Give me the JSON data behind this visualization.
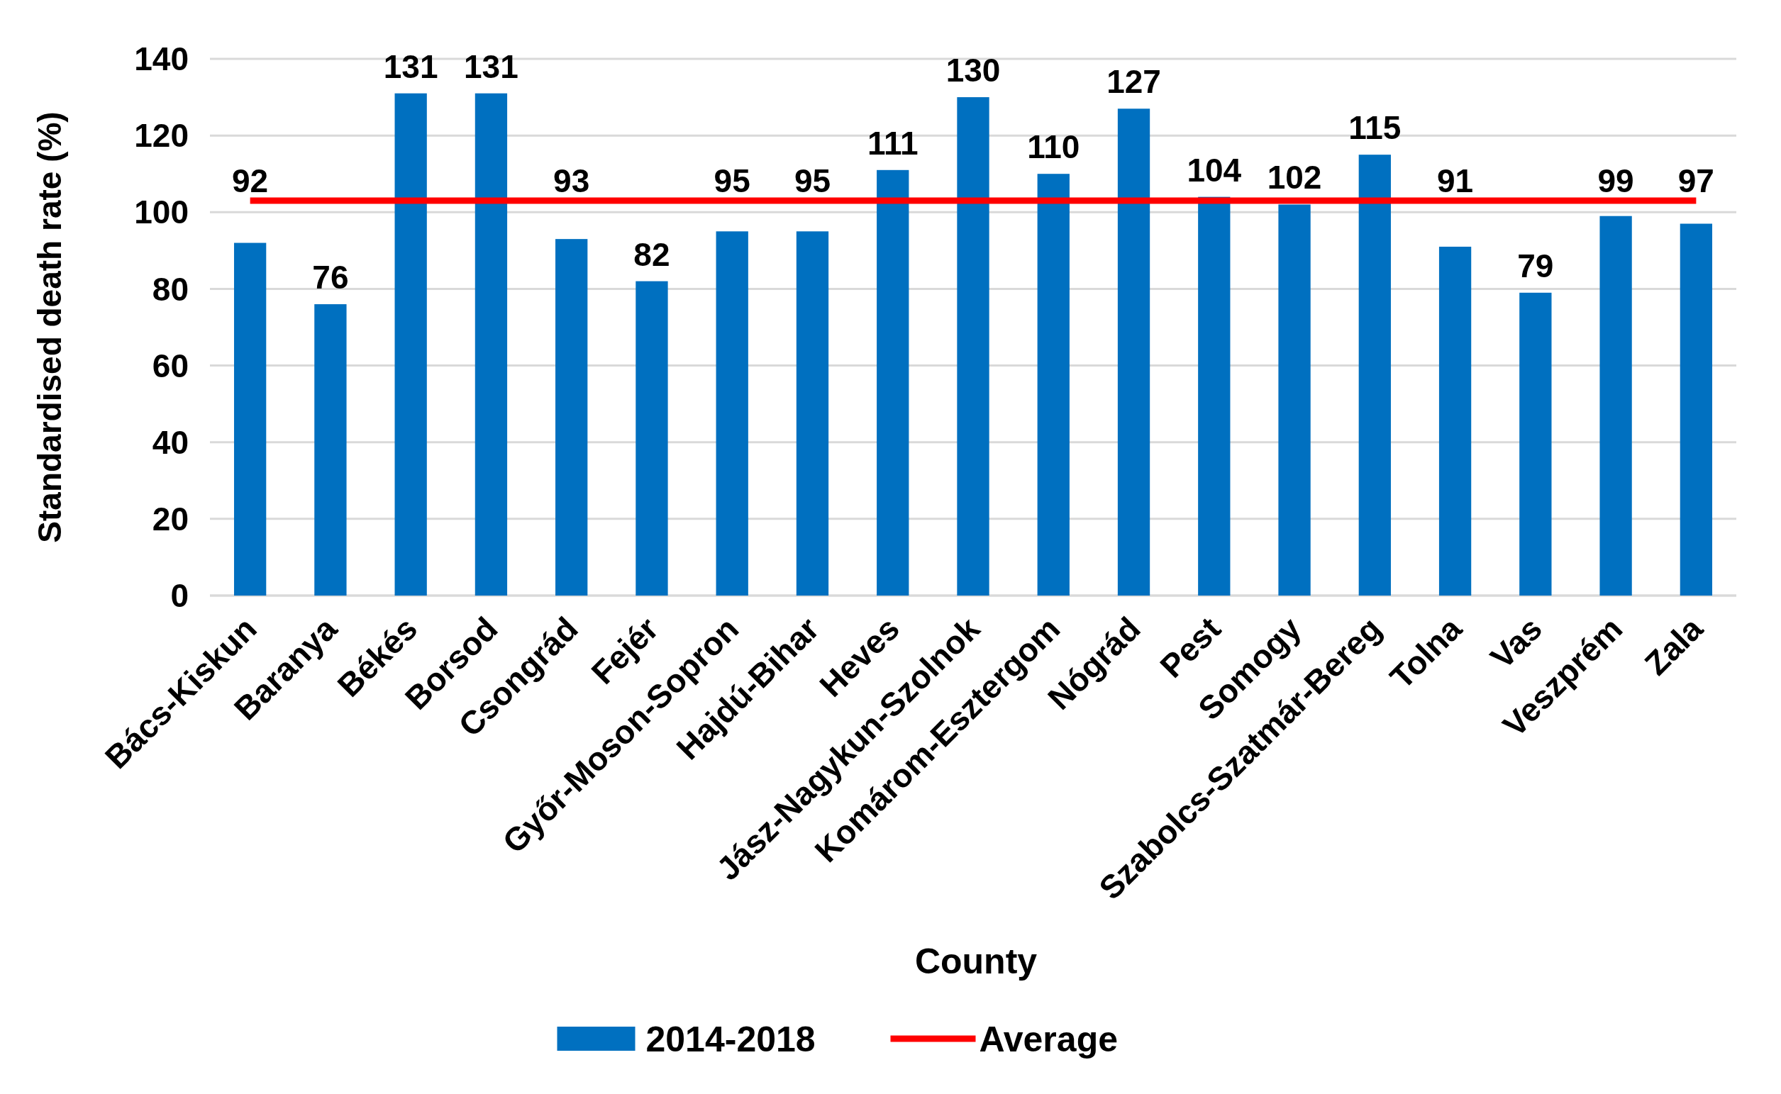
{
  "chart_data": {
    "type": "bar",
    "xlabel": "County",
    "ylabel": "Standardised death rate (%)",
    "categories": [
      "Bács-Kiskun",
      "Baranya",
      "Békés",
      "Borsod",
      "Csongrád",
      "Fejér",
      "Győr-Moson-Sopron",
      "Hajdú-Bihar",
      "Heves",
      "Jász-Nagykun-Szolnok",
      "Komárom-Esztergom",
      "Nógrád",
      "Pest",
      "Somogy",
      "Szabolcs-Szatmár-Bereg",
      "Tolna",
      "Vas",
      "Veszprém",
      "Zala"
    ],
    "series": [
      {
        "name": "2014-2018",
        "color": "#0070c0",
        "values": [
          92,
          76,
          131,
          131,
          93,
          82,
          95,
          95,
          111,
          130,
          110,
          127,
          104,
          102,
          115,
          91,
          79,
          99,
          97
        ],
        "value_labels": [
          "92",
          "76",
          "131",
          "131",
          "93",
          "82",
          "95",
          "95",
          "111",
          "130",
          "110",
          "127",
          "104",
          "102",
          "115",
          "91",
          "79",
          "99",
          "97"
        ]
      },
      {
        "name": "Average",
        "type": "line",
        "color": "#ff0000",
        "values": [
          103,
          103,
          103,
          103,
          103,
          103,
          103,
          103,
          103,
          103,
          103,
          103,
          103,
          103,
          103,
          103,
          103,
          103,
          103
        ]
      }
    ],
    "ylim": [
      0,
      140
    ],
    "yticks": [
      0,
      20,
      40,
      60,
      80,
      100,
      120,
      140
    ],
    "grid": "y",
    "legend": "bottom",
    "marker": "none",
    "line_style": "solid"
  }
}
